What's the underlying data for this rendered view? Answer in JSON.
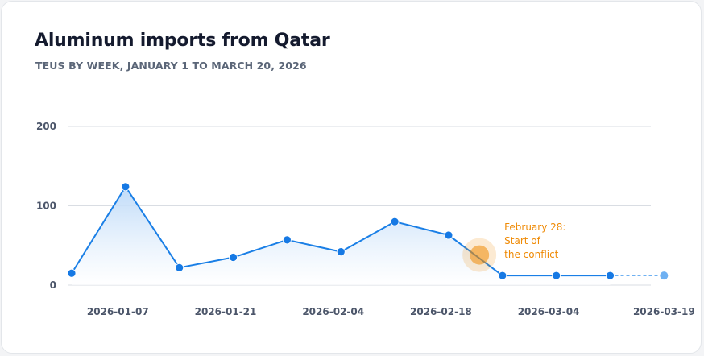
{
  "title": "Aluminum imports from Qatar",
  "subtitle": "TEUS BY WEEK, JANUARY 1 TO MARCH 20, 2026",
  "colors": {
    "line": "#1a7fe6",
    "point": "#1679e4",
    "projection": "#6fb1f2",
    "highlight": "#ef8a05",
    "grid": "#d9dde3",
    "area_top": "#bcd9f8",
    "area_bottom": "#ffffff"
  },
  "chart_data": {
    "type": "line",
    "title": "Aluminum imports from Qatar",
    "subtitle": "TEUS BY WEEK, JANUARY 1 TO MARCH 20, 2026",
    "xlabel": "",
    "ylabel": "",
    "ylim": [
      0,
      200
    ],
    "y_ticks": [
      "0",
      "100",
      "200"
    ],
    "x_ticks": [
      "2026-01-07",
      "2026-01-21",
      "2026-02-04",
      "2026-02-18",
      "2026-03-04",
      "2026-03-19"
    ],
    "grid": true,
    "area_fill": true,
    "series": [
      {
        "points": [
          {
            "x": "2026-01-01",
            "y": 15
          },
          {
            "x": "2026-01-08",
            "y": 124
          },
          {
            "x": "2026-01-15",
            "y": 22
          },
          {
            "x": "2026-01-22",
            "y": 35
          },
          {
            "x": "2026-01-29",
            "y": 57
          },
          {
            "x": "2026-02-05",
            "y": 42
          },
          {
            "x": "2026-02-12",
            "y": 80
          },
          {
            "x": "2026-02-19",
            "y": 63
          },
          {
            "x": "2026-02-26",
            "y": 12
          },
          {
            "x": "2026-03-05",
            "y": 12
          },
          {
            "x": "2026-03-12",
            "y": 12
          }
        ]
      }
    ],
    "projection": {
      "style": "dashed",
      "from": {
        "x": "2026-03-12",
        "y": 12
      },
      "to": {
        "x": "2026-03-19",
        "y": 12
      }
    },
    "annotation": {
      "x": "2026-02-23",
      "y": 38,
      "lines": [
        "February 28:",
        "Start of",
        "the conflict"
      ]
    }
  }
}
